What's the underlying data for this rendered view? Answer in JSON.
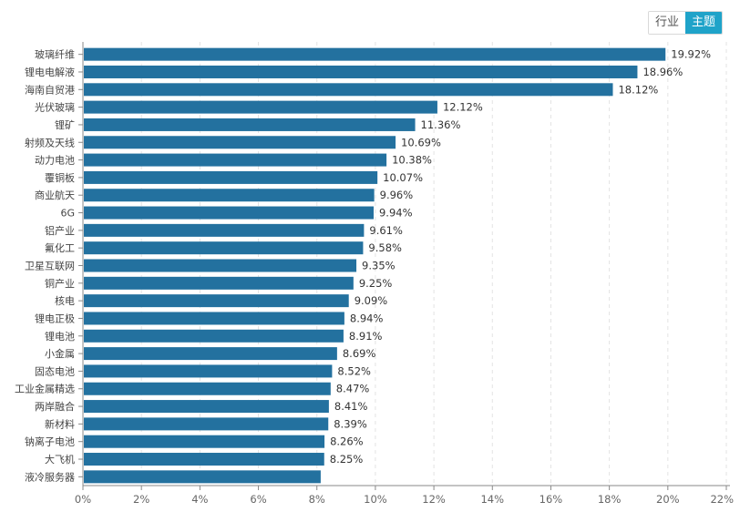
{
  "toggle": {
    "options": [
      "行业",
      "主题"
    ],
    "active": "主题"
  },
  "chart_data": {
    "type": "bar",
    "orientation": "horizontal",
    "title": "",
    "xlabel": "",
    "ylabel": "",
    "xlim": [
      0,
      22
    ],
    "x_ticks": [
      "0%",
      "2%",
      "4%",
      "6%",
      "8%",
      "10%",
      "12%",
      "14%",
      "16%",
      "18%",
      "20%",
      "22%"
    ],
    "grid": "vertical dashed",
    "bar_color": "#23719f",
    "categories": [
      "玻璃纤维",
      "锂电电解液",
      "海南自贸港",
      "光伏玻璃",
      "锂矿",
      "射频及天线",
      "动力电池",
      "覆铜板",
      "商业航天",
      "6G",
      "铝产业",
      "氟化工",
      "卫星互联网",
      "铜产业",
      "核电",
      "锂电正极",
      "锂电池",
      "小金属",
      "固态电池",
      "工业金属精选",
      "两岸融合",
      "新材料",
      "钠离子电池",
      "大飞机",
      "液冷服务器"
    ],
    "values": [
      19.92,
      18.96,
      18.12,
      12.12,
      11.36,
      10.69,
      10.38,
      10.07,
      9.96,
      9.94,
      9.61,
      9.58,
      9.35,
      9.25,
      9.09,
      8.94,
      8.91,
      8.69,
      8.52,
      8.47,
      8.41,
      8.39,
      8.26,
      8.25,
      8.13
    ],
    "value_labels": [
      "19.92%",
      "18.96%",
      "18.12%",
      "12.12%",
      "11.36%",
      "10.69%",
      "10.38%",
      "10.07%",
      "9.96%",
      "9.94%",
      "9.61%",
      "9.58%",
      "9.35%",
      "9.25%",
      "9.09%",
      "8.94%",
      "8.91%",
      "8.69%",
      "8.52%",
      "8.47%",
      "8.41%",
      "8.39%",
      "8.26%",
      "8.25%",
      ""
    ]
  }
}
